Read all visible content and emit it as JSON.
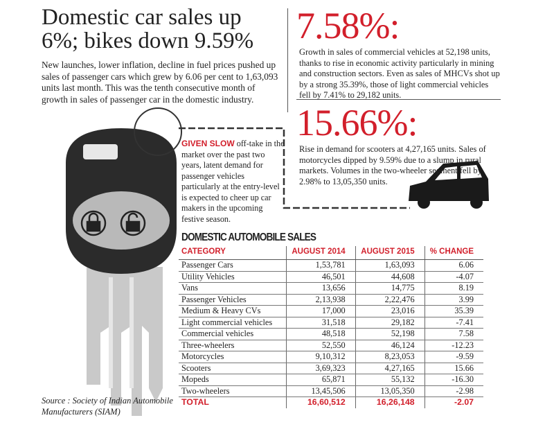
{
  "headline": "Domestic car sales up 6%; bikes down 9.59%",
  "intro": "New launches, lower inflation, decline in fuel prices pushed up sales of passenger cars which grew by 6.06 per cent to 1,63,093 units last month. This was the tenth consecutive month of growth in sales of passenger car in the domestic industry.",
  "highlight1": {
    "pct": "7.58%:",
    "text": "Growth in sales of commercial vehicles at 52,198 units, thanks to rise in economic activity particularly in mining and construction sectors. Even as sales of MHCVs shot up by a strong 35.39%, those of light commercial vehicles fell by 7.41% to 29,182 units."
  },
  "highlight2": {
    "pct": "15.66%:",
    "text": "Rise in demand for scooters at 4,27,165 units. Sales of motorcycles dipped by 9.59% due to a slump in rural markets. Volumes in the two-wheeler segment fell by 2.98% to 13,05,350 units."
  },
  "side_note": {
    "lead": "GIVEN SLOW",
    "text": " off-take in the market over the past two years, latent demand for passenger vehicles particularly at the entry-level is expected to cheer up car makers in the upcoming festive season."
  },
  "table": {
    "title": "DOMESTIC AUTOMOBILE SALES",
    "headers": [
      "CATEGORY",
      "AUGUST 2014",
      "AUGUST 2015",
      "% CHANGE"
    ],
    "rows": [
      [
        "Passenger Cars",
        "1,53,781",
        "1,63,093",
        "6.06"
      ],
      [
        "Utility Vehicles",
        "46,501",
        "44,608",
        "-4.07"
      ],
      [
        "Vans",
        "13,656",
        "14,775",
        "8.19"
      ],
      [
        "Passenger Vehicles",
        "2,13,938",
        "2,22,476",
        "3.99"
      ],
      [
        "Medium & Heavy CVs",
        "17,000",
        "23,016",
        "35.39"
      ],
      [
        "Light commercial vehicles",
        "31,518",
        "29,182",
        "-7.41"
      ],
      [
        "Commercial vehicles",
        "48,518",
        "52,198",
        "7.58"
      ],
      [
        "Three-wheelers",
        "52,550",
        "46,124",
        "-12.23"
      ],
      [
        "Motorcycles",
        "9,10,312",
        "8,23,053",
        "-9.59"
      ],
      [
        "Scooters",
        "3,69,323",
        "4,27,165",
        "15.66"
      ],
      [
        "Mopeds",
        "65,871",
        "55,132",
        "-16.30"
      ],
      [
        "Two-wheelers",
        "13,45,506",
        "13,05,350",
        "-2.98"
      ]
    ],
    "total": [
      "TOTAL",
      "16,60,512",
      "16,26,148",
      "-2.07"
    ]
  },
  "source": "Source : Society of Indian Automobile Manufacturers (SIAM)",
  "colors": {
    "accent": "#d21f2b",
    "key": "#2b2b2b",
    "blade": "#c8c8c8"
  }
}
